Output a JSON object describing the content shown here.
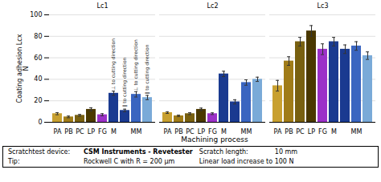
{
  "chart_data": {
    "type": "bar",
    "categories": [
      "PA",
      "PB",
      "PC",
      "LP",
      "FG",
      "M",
      null,
      "MM",
      null
    ],
    "colors": [
      "#C8A030",
      "#A07C18",
      "#786010",
      "#4A3800",
      "#9B30C8",
      "#1A3A90",
      "#1A3A90",
      "#3A65C0",
      "#7AAAD8"
    ],
    "panels": [
      {
        "title": "Lc1",
        "values": [
          8.0,
          5.0,
          6.5,
          12.0,
          7.0,
          27.0,
          11.0,
          26.0,
          23.0
        ],
        "errors": [
          1.0,
          0.8,
          0.8,
          1.5,
          1.0,
          2.0,
          1.2,
          2.5,
          2.0
        ],
        "annotations": [
          null,
          null,
          null,
          null,
          null,
          "⊥ to cutting direction",
          "∥ to cutting direction",
          "⊥ to cutting direction",
          "∥ to cutting direction"
        ]
      },
      {
        "title": "Lc2",
        "values": [
          9.0,
          6.0,
          8.0,
          12.0,
          8.0,
          45.0,
          19.0,
          37.0,
          40.0
        ],
        "errors": [
          0.8,
          0.7,
          0.9,
          1.2,
          0.8,
          2.5,
          2.0,
          2.5,
          2.0
        ]
      },
      {
        "title": "Lc3",
        "values": [
          34.0,
          57.0,
          75.0,
          85.0,
          68.0,
          75.0,
          68.0,
          71.0,
          62.0
        ],
        "errors": [
          5.0,
          4.0,
          4.0,
          5.0,
          5.0,
          4.0,
          4.0,
          4.0,
          3.5
        ]
      }
    ],
    "xlabel": "Machining process",
    "ylabel": "Coating adhesion Lcx\nN",
    "ylim": [
      0,
      100
    ],
    "yticks": [
      0,
      20,
      40,
      60,
      80,
      100
    ],
    "grid": true,
    "footer": [
      [
        "Scratchtest device:",
        "CSM Instruments - Revetester"
      ],
      [
        "Scratch length:",
        "10 mm"
      ],
      [
        "Tip:",
        "Rockwell C with R = 200 μm"
      ],
      [
        "Linear load increase to 100 N"
      ]
    ]
  }
}
